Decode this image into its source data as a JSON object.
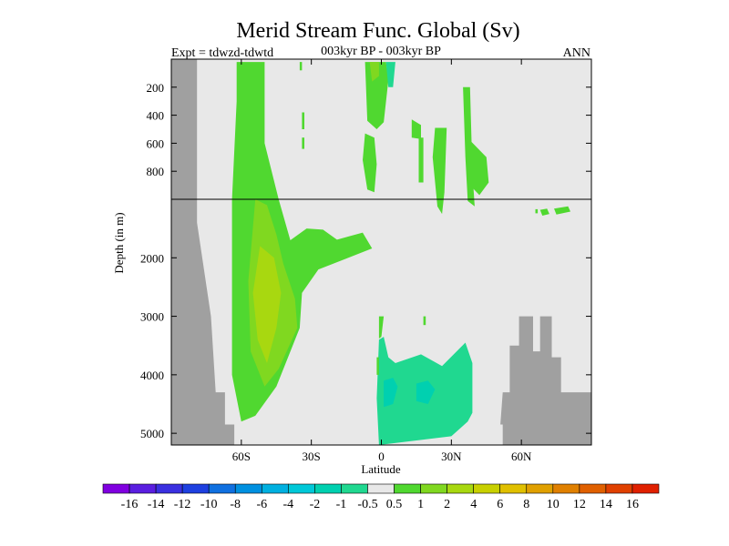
{
  "chart_data": {
    "type": "heatmap",
    "title": "Merid Stream Func. Global (Sv)",
    "subtitle_left": "Expt = tdwzd-tdwtd",
    "subtitle_center": "003kyr BP - 003kyr BP",
    "subtitle_right": "ANN",
    "xlabel": "Latitude",
    "ylabel": "Depth (in m)",
    "x_range": [
      -90,
      90
    ],
    "x_ticks": [
      {
        "value": -60,
        "label": "60S"
      },
      {
        "value": -30,
        "label": "30S"
      },
      {
        "value": 0,
        "label": "0"
      },
      {
        "value": 30,
        "label": "30N"
      },
      {
        "value": 60,
        "label": "60N"
      }
    ],
    "y_upper": {
      "range": [
        0,
        1000
      ],
      "ticks": [
        {
          "value": 200,
          "label": "200"
        },
        {
          "value": 400,
          "label": "400"
        },
        {
          "value": 600,
          "label": "600"
        },
        {
          "value": 800,
          "label": "800"
        }
      ]
    },
    "y_lower": {
      "range": [
        1000,
        5200
      ],
      "ticks": [
        {
          "value": 2000,
          "label": "2000"
        },
        {
          "value": 3000,
          "label": "3000"
        },
        {
          "value": 4000,
          "label": "4000"
        },
        {
          "value": 5000,
          "label": "5000"
        }
      ]
    },
    "colorbar": {
      "labels": [
        "-16",
        "-14",
        "-12",
        "-10",
        "-8",
        "-6",
        "-4",
        "-2",
        "-1",
        "-0.5",
        "0.5",
        "1",
        "2",
        "4",
        "6",
        "8",
        "10",
        "12",
        "14",
        "16"
      ],
      "colors": [
        "#8000e0",
        "#5a1ee0",
        "#3a30e0",
        "#1e40e0",
        "#1070e0",
        "#0090e0",
        "#00b0e0",
        "#00c8d8",
        "#00d0b0",
        "#20d890",
        "#e8e8e8",
        "#50d830",
        "#80d820",
        "#a8d810",
        "#c8d000",
        "#e0c000",
        "#e0a000",
        "#e08000",
        "#e06000",
        "#e04000",
        "#e02000"
      ]
    },
    "background_color": "#e8e8e8",
    "land_color": "#a0a0a0",
    "regions": [
      {
        "name": "southern-ocean-cell",
        "level": "1",
        "color": "#50d830",
        "points": [
          [
            -62,
            20
          ],
          [
            -50,
            20
          ],
          [
            -50,
            600
          ],
          [
            -44,
            1000
          ],
          [
            -39,
            1700
          ],
          [
            -32,
            1500
          ],
          [
            -25,
            1520
          ],
          [
            -19,
            1690
          ],
          [
            -8,
            1570
          ],
          [
            -4,
            1840
          ],
          [
            -27,
            2200
          ],
          [
            -34,
            2600
          ],
          [
            -35,
            3200
          ],
          [
            -40,
            3700
          ],
          [
            -45,
            4200
          ],
          [
            -54,
            4700
          ],
          [
            -60,
            4800
          ],
          [
            -64,
            4000
          ],
          [
            -64,
            1000
          ],
          [
            -62,
            300
          ]
        ]
      },
      {
        "name": "southern-core",
        "level": "2",
        "color": "#80d820",
        "points": [
          [
            -54,
            1000
          ],
          [
            -49,
            1100
          ],
          [
            -45,
            1600
          ],
          [
            -42,
            2100
          ],
          [
            -37,
            2700
          ],
          [
            -36,
            3200
          ],
          [
            -44,
            3900
          ],
          [
            -50,
            4200
          ],
          [
            -56,
            3600
          ],
          [
            -57,
            2400
          ]
        ]
      },
      {
        "name": "southern-inner-core",
        "level": "4",
        "color": "#a8d810",
        "points": [
          [
            -52,
            1800
          ],
          [
            -46,
            2000
          ],
          [
            -43,
            2600
          ],
          [
            -45,
            3200
          ],
          [
            -49,
            3800
          ],
          [
            -53,
            3400
          ],
          [
            -55,
            2600
          ]
        ]
      },
      {
        "name": "tropical-upper-cell",
        "level": "1",
        "color": "#50d830",
        "points": [
          [
            -7,
            20
          ],
          [
            2,
            20
          ],
          [
            3,
            150
          ],
          [
            1,
            450
          ],
          [
            -2,
            500
          ],
          [
            -6,
            440
          ]
        ]
      },
      {
        "name": "tropical-thermocline",
        "level": "1",
        "color": "#50d830",
        "points": [
          [
            -7,
            530
          ],
          [
            -3,
            560
          ],
          [
            -2,
            750
          ],
          [
            -3,
            950
          ],
          [
            -6,
            930
          ],
          [
            -8,
            720
          ]
        ]
      },
      {
        "name": "tropical-upper-core",
        "level": "2",
        "color": "#80d820",
        "points": [
          [
            -5,
            20
          ],
          [
            -1,
            20
          ],
          [
            -1,
            120
          ],
          [
            -4,
            160
          ]
        ]
      },
      {
        "name": "upper-negative-patch",
        "level": "-0.5",
        "color": "#20d890",
        "points": [
          [
            2,
            20
          ],
          [
            6,
            20
          ],
          [
            5,
            200
          ],
          [
            3,
            200
          ]
        ]
      },
      {
        "name": "subtropical-upper-1",
        "level": "1",
        "color": "#50d830",
        "points": [
          [
            23,
            490
          ],
          [
            28,
            490
          ],
          [
            27,
            950
          ],
          [
            26,
            1250
          ],
          [
            24,
            1120
          ],
          [
            22,
            700
          ]
        ]
      },
      {
        "name": "subtropical-upper-2",
        "level": "1",
        "color": "#50d830",
        "points": [
          [
            35,
            200
          ],
          [
            38,
            200
          ],
          [
            39,
            800
          ],
          [
            40,
            1120
          ],
          [
            37,
            1030
          ],
          [
            36,
            700
          ]
        ]
      },
      {
        "name": "subtropical-upper-3",
        "level": "1",
        "color": "#50d830",
        "points": [
          [
            38,
            580
          ],
          [
            45,
            700
          ],
          [
            46,
            880
          ],
          [
            42,
            970
          ],
          [
            38,
            900
          ]
        ]
      },
      {
        "name": "southern-speckle-1",
        "level": "1",
        "color": "#50d830",
        "points": [
          [
            13,
            430
          ],
          [
            17,
            470
          ],
          [
            17,
            570
          ],
          [
            13,
            560
          ]
        ]
      },
      {
        "name": "southern-speckle-2",
        "level": "1",
        "color": "#50d830",
        "points": [
          [
            16,
            560
          ],
          [
            18,
            560
          ],
          [
            18,
            880
          ],
          [
            16,
            880
          ]
        ]
      },
      {
        "name": "speckle-3",
        "level": "1",
        "color": "#50d830",
        "points": [
          [
            -34,
            380
          ],
          [
            -33,
            380
          ],
          [
            -33,
            500
          ],
          [
            -34,
            500
          ]
        ]
      },
      {
        "name": "speckle-4",
        "level": "1",
        "color": "#50d830",
        "points": [
          [
            -34,
            560
          ],
          [
            -33,
            560
          ],
          [
            -33,
            640
          ],
          [
            -34,
            640
          ]
        ]
      },
      {
        "name": "speckle-5",
        "level": "1",
        "color": "#50d830",
        "points": [
          [
            -35,
            20
          ],
          [
            -34,
            20
          ],
          [
            -34,
            80
          ],
          [
            -35,
            80
          ]
        ]
      },
      {
        "name": "northern-deep-patch-1",
        "level": "1",
        "color": "#50d830",
        "points": [
          [
            68,
            1180
          ],
          [
            71,
            1160
          ],
          [
            72,
            1250
          ],
          [
            69,
            1280
          ]
        ]
      },
      {
        "name": "northern-deep-patch-2",
        "level": "1",
        "color": "#50d830",
        "points": [
          [
            74,
            1160
          ],
          [
            80,
            1120
          ],
          [
            81,
            1210
          ],
          [
            75,
            1260
          ]
        ]
      },
      {
        "name": "northern-deep-patch-3",
        "level": "1",
        "color": "#50d830",
        "points": [
          [
            66,
            1170
          ],
          [
            67,
            1170
          ],
          [
            67,
            1240
          ],
          [
            66,
            1240
          ]
        ]
      },
      {
        "name": "abyssal-cell",
        "level": "-1",
        "color": "#20d890",
        "points": [
          [
            -1,
            3400
          ],
          [
            1,
            3350
          ],
          [
            3,
            3700
          ],
          [
            6,
            3800
          ],
          [
            17,
            3650
          ],
          [
            26,
            3850
          ],
          [
            36,
            3450
          ],
          [
            39,
            3800
          ],
          [
            39,
            4650
          ],
          [
            37,
            4800
          ],
          [
            30,
            5050
          ],
          [
            -1,
            5200
          ],
          [
            -2,
            4400
          ]
        ]
      },
      {
        "name": "abyssal-core",
        "level": "-2",
        "color": "#00d0b0",
        "points": [
          [
            1,
            4100
          ],
          [
            5,
            4050
          ],
          [
            7,
            4200
          ],
          [
            5,
            4500
          ],
          [
            1,
            4550
          ]
        ]
      },
      {
        "name": "abyssal-core-2",
        "level": "-2",
        "color": "#00d0b0",
        "points": [
          [
            15,
            4150
          ],
          [
            20,
            4100
          ],
          [
            23,
            4250
          ],
          [
            20,
            4500
          ],
          [
            15,
            4450
          ]
        ]
      },
      {
        "name": "abyssal-positive-edge",
        "level": "1",
        "color": "#50d830",
        "points": [
          [
            -1,
            3000
          ],
          [
            1,
            3000
          ],
          [
            0,
            3350
          ],
          [
            -1,
            3380
          ]
        ]
      },
      {
        "name": "abyssal-edge-2",
        "level": "1",
        "color": "#50d830",
        "points": [
          [
            18,
            3000
          ],
          [
            19,
            3000
          ],
          [
            19,
            3150
          ],
          [
            18,
            3150
          ]
        ]
      },
      {
        "name": "abyssal-edge-3",
        "level": "1",
        "color": "#50d830",
        "points": [
          [
            -2,
            3700
          ],
          [
            -1,
            3700
          ],
          [
            -1,
            4000
          ],
          [
            -2,
            4000
          ]
        ]
      }
    ],
    "land": [
      [
        [
          -90,
          0
        ],
        [
          -79,
          0
        ],
        [
          -79,
          1400
        ],
        [
          -73,
          3000
        ],
        [
          -71,
          4300
        ],
        [
          -67,
          4300
        ],
        [
          -67,
          4850
        ],
        [
          -63,
          4850
        ],
        [
          -63,
          5200
        ],
        [
          -90,
          5200
        ]
      ],
      [
        [
          52,
          4300
        ],
        [
          55,
          4300
        ],
        [
          55,
          3500
        ],
        [
          59,
          3500
        ],
        [
          59,
          3000
        ],
        [
          65,
          3000
        ],
        [
          65,
          3600
        ],
        [
          68,
          3600
        ],
        [
          68,
          3000
        ],
        [
          73,
          3000
        ],
        [
          73,
          3700
        ],
        [
          77,
          3700
        ],
        [
          77,
          4300
        ],
        [
          90,
          4300
        ],
        [
          90,
          5200
        ],
        [
          52,
          5200
        ],
        [
          52,
          4850
        ],
        [
          51,
          4850
        ]
      ]
    ]
  }
}
